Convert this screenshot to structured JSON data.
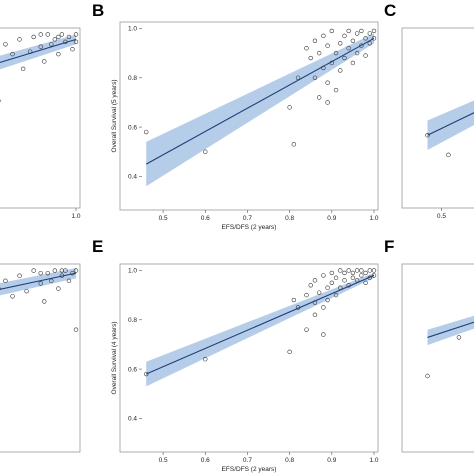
{
  "figure": {
    "colors": {
      "band": "#a9c4e6",
      "line": "#1f3e78",
      "point": "#333333"
    }
  },
  "chart_data": [
    {
      "panel": "A",
      "type": "scatter",
      "letter": "",
      "xlabel": "",
      "ylabel": "",
      "xlim": [
        0.45,
        1.0
      ],
      "ylim": [
        0.3,
        1.0
      ],
      "xticks": [
        1.0
      ],
      "xtick_labels": [
        "1.0"
      ],
      "yticks": [],
      "ytick_labels": [],
      "fit": {
        "x": [
          0.45,
          1.0
        ],
        "y": [
          0.73,
          0.97
        ],
        "lower": [
          0.69,
          0.95
        ],
        "upper": [
          0.77,
          0.99
        ]
      },
      "points": [
        [
          0.55,
          0.86
        ],
        [
          0.6,
          0.92
        ],
        [
          0.65,
          0.9
        ],
        [
          0.7,
          0.84
        ],
        [
          0.72,
          0.88
        ],
        [
          0.75,
          0.93
        ],
        [
          0.78,
          0.72
        ],
        [
          0.8,
          0.95
        ],
        [
          0.82,
          0.91
        ],
        [
          0.84,
          0.97
        ],
        [
          0.85,
          0.85
        ],
        [
          0.87,
          0.92
        ],
        [
          0.88,
          0.98
        ],
        [
          0.9,
          0.94
        ],
        [
          0.91,
          0.88
        ],
        [
          0.92,
          0.99
        ],
        [
          0.93,
          0.95
        ],
        [
          0.94,
          0.97
        ],
        [
          0.95,
          0.91
        ],
        [
          0.96,
          0.99
        ],
        [
          0.97,
          0.96
        ],
        [
          0.98,
          0.98
        ],
        [
          0.99,
          0.93
        ],
        [
          1.0,
          0.99
        ],
        [
          1.0,
          0.96
        ],
        [
          0.95,
          0.98
        ],
        [
          0.9,
          0.99
        ]
      ]
    },
    {
      "panel": "B",
      "type": "scatter",
      "letter": "B",
      "xlabel": "EFS/DFS (2 years)",
      "ylabel": "Overall Survival (5 years)",
      "xlim": [
        0.45,
        1.0
      ],
      "ylim": [
        0.28,
        1.01
      ],
      "xticks": [
        0.5,
        0.6,
        0.7,
        0.8,
        0.9,
        1.0
      ],
      "xtick_labels": [
        "0.5",
        "0.6",
        "0.7",
        "0.8",
        "0.9",
        "1.0"
      ],
      "yticks": [
        0.4,
        0.6,
        0.8,
        1.0
      ],
      "ytick_labels": [
        "0.4",
        "0.6",
        "0.8",
        "1.0"
      ],
      "fit": {
        "x": [
          0.46,
          1.0
        ],
        "y": [
          0.45,
          0.96
        ],
        "lower": [
          0.36,
          0.94
        ],
        "upper": [
          0.54,
          0.98
        ]
      },
      "points": [
        [
          0.46,
          0.58
        ],
        [
          0.6,
          0.5
        ],
        [
          0.8,
          0.68
        ],
        [
          0.81,
          0.53
        ],
        [
          0.82,
          0.8
        ],
        [
          0.84,
          0.92
        ],
        [
          0.85,
          0.88
        ],
        [
          0.86,
          0.95
        ],
        [
          0.87,
          0.72
        ],
        [
          0.87,
          0.9
        ],
        [
          0.88,
          0.84
        ],
        [
          0.88,
          0.97
        ],
        [
          0.89,
          0.78
        ],
        [
          0.89,
          0.93
        ],
        [
          0.9,
          0.86
        ],
        [
          0.9,
          0.99
        ],
        [
          0.91,
          0.75
        ],
        [
          0.91,
          0.9
        ],
        [
          0.92,
          0.94
        ],
        [
          0.92,
          0.83
        ],
        [
          0.93,
          0.97
        ],
        [
          0.93,
          0.88
        ],
        [
          0.94,
          0.92
        ],
        [
          0.94,
          0.99
        ],
        [
          0.95,
          0.86
        ],
        [
          0.95,
          0.95
        ],
        [
          0.96,
          0.9
        ],
        [
          0.96,
          0.98
        ],
        [
          0.97,
          0.93
        ],
        [
          0.97,
          0.99
        ],
        [
          0.98,
          0.96
        ],
        [
          0.98,
          0.89
        ],
        [
          0.99,
          0.98
        ],
        [
          0.99,
          0.94
        ],
        [
          1.0,
          0.99
        ],
        [
          1.0,
          0.96
        ],
        [
          0.86,
          0.8
        ],
        [
          0.89,
          0.7
        ]
      ]
    },
    {
      "panel": "C",
      "type": "scatter",
      "letter": "C",
      "xlabel": "",
      "ylabel": "",
      "xlim": [
        0.45,
        1.0
      ],
      "ylim": [
        0.3,
        1.0
      ],
      "xticks": [
        0.5
      ],
      "xtick_labels": [
        "0.5"
      ],
      "yticks": [],
      "ytick_labels": [],
      "fit": {
        "x": [
          0.46,
          1.0
        ],
        "y": [
          0.58,
          0.95
        ],
        "lower": [
          0.52,
          0.93
        ],
        "upper": [
          0.64,
          0.97
        ]
      },
      "points": [
        [
          0.46,
          0.58
        ],
        [
          0.52,
          0.5
        ]
      ]
    },
    {
      "panel": "D",
      "type": "scatter",
      "letter": "",
      "xlabel": "",
      "ylabel": "",
      "xlim": [
        0.45,
        1.0
      ],
      "ylim": [
        0.3,
        1.0
      ],
      "xticks": [],
      "xtick_labels": [],
      "yticks": [],
      "ytick_labels": [],
      "fit": {
        "x": [
          0.45,
          1.0
        ],
        "y": [
          0.82,
          0.98
        ],
        "lower": [
          0.79,
          0.96
        ],
        "upper": [
          0.85,
          1.0
        ]
      },
      "points": [
        [
          0.55,
          0.88
        ],
        [
          0.6,
          0.9
        ],
        [
          0.65,
          0.86
        ],
        [
          0.7,
          0.93
        ],
        [
          0.72,
          0.84
        ],
        [
          0.75,
          0.72
        ],
        [
          0.78,
          0.92
        ],
        [
          0.8,
          0.95
        ],
        [
          0.82,
          0.89
        ],
        [
          0.84,
          0.97
        ],
        [
          0.86,
          0.91
        ],
        [
          0.88,
          0.99
        ],
        [
          0.9,
          0.94
        ],
        [
          0.91,
          0.87
        ],
        [
          0.92,
          0.98
        ],
        [
          0.93,
          0.95
        ],
        [
          0.94,
          0.99
        ],
        [
          0.95,
          0.92
        ],
        [
          0.96,
          0.97
        ],
        [
          0.97,
          0.99
        ],
        [
          0.98,
          0.95
        ],
        [
          0.99,
          0.98
        ],
        [
          1.0,
          0.99
        ],
        [
          1.0,
          0.76
        ],
        [
          0.96,
          0.99
        ],
        [
          0.9,
          0.98
        ]
      ]
    },
    {
      "panel": "E",
      "type": "scatter",
      "letter": "E",
      "xlabel": "EFS/DFS (2 years)",
      "ylabel": "Overall Survival (4 years)",
      "xlim": [
        0.45,
        1.0
      ],
      "ylim": [
        0.28,
        1.01
      ],
      "xticks": [
        0.5,
        0.6,
        0.7,
        0.8,
        0.9,
        1.0
      ],
      "xtick_labels": [
        "0.5",
        "0.6",
        "0.7",
        "0.8",
        "0.9",
        "1.0"
      ],
      "yticks": [
        0.4,
        0.6,
        0.8,
        1.0
      ],
      "ytick_labels": [
        "0.4",
        "0.6",
        "0.8",
        "1.0"
      ],
      "fit": {
        "x": [
          0.46,
          1.0
        ],
        "y": [
          0.58,
          0.98
        ],
        "lower": [
          0.53,
          0.97
        ],
        "upper": [
          0.63,
          0.99
        ]
      },
      "points": [
        [
          0.46,
          0.58
        ],
        [
          0.6,
          0.64
        ],
        [
          0.8,
          0.67
        ],
        [
          0.81,
          0.88
        ],
        [
          0.82,
          0.85
        ],
        [
          0.84,
          0.9
        ],
        [
          0.85,
          0.94
        ],
        [
          0.86,
          0.87
        ],
        [
          0.86,
          0.96
        ],
        [
          0.87,
          0.91
        ],
        [
          0.88,
          0.85
        ],
        [
          0.88,
          0.98
        ],
        [
          0.89,
          0.93
        ],
        [
          0.89,
          0.88
        ],
        [
          0.9,
          0.99
        ],
        [
          0.9,
          0.95
        ],
        [
          0.91,
          0.9
        ],
        [
          0.91,
          0.97
        ],
        [
          0.92,
          1.0
        ],
        [
          0.92,
          0.93
        ],
        [
          0.93,
          0.96
        ],
        [
          0.93,
          0.99
        ],
        [
          0.94,
          0.94
        ],
        [
          0.94,
          1.0
        ],
        [
          0.95,
          0.97
        ],
        [
          0.95,
          0.99
        ],
        [
          0.96,
          1.0
        ],
        [
          0.96,
          0.96
        ],
        [
          0.97,
          0.98
        ],
        [
          0.97,
          1.0
        ],
        [
          0.98,
          0.99
        ],
        [
          0.98,
          0.95
        ],
        [
          0.99,
          1.0
        ],
        [
          0.99,
          0.97
        ],
        [
          1.0,
          1.0
        ],
        [
          1.0,
          0.98
        ],
        [
          0.84,
          0.76
        ],
        [
          0.86,
          0.82
        ],
        [
          0.88,
          0.74
        ]
      ]
    },
    {
      "panel": "F",
      "type": "scatter",
      "letter": "F",
      "xlabel": "",
      "ylabel": "",
      "xlim": [
        0.45,
        1.0
      ],
      "ylim": [
        0.3,
        1.0
      ],
      "xticks": [],
      "xtick_labels": [],
      "yticks": [],
      "ytick_labels": [],
      "fit": {
        "x": [
          0.46,
          1.0
        ],
        "y": [
          0.73,
          0.97
        ],
        "lower": [
          0.7,
          0.96
        ],
        "upper": [
          0.76,
          0.98
        ]
      },
      "points": [
        [
          0.46,
          0.58
        ],
        [
          0.55,
          0.73
        ]
      ]
    }
  ]
}
